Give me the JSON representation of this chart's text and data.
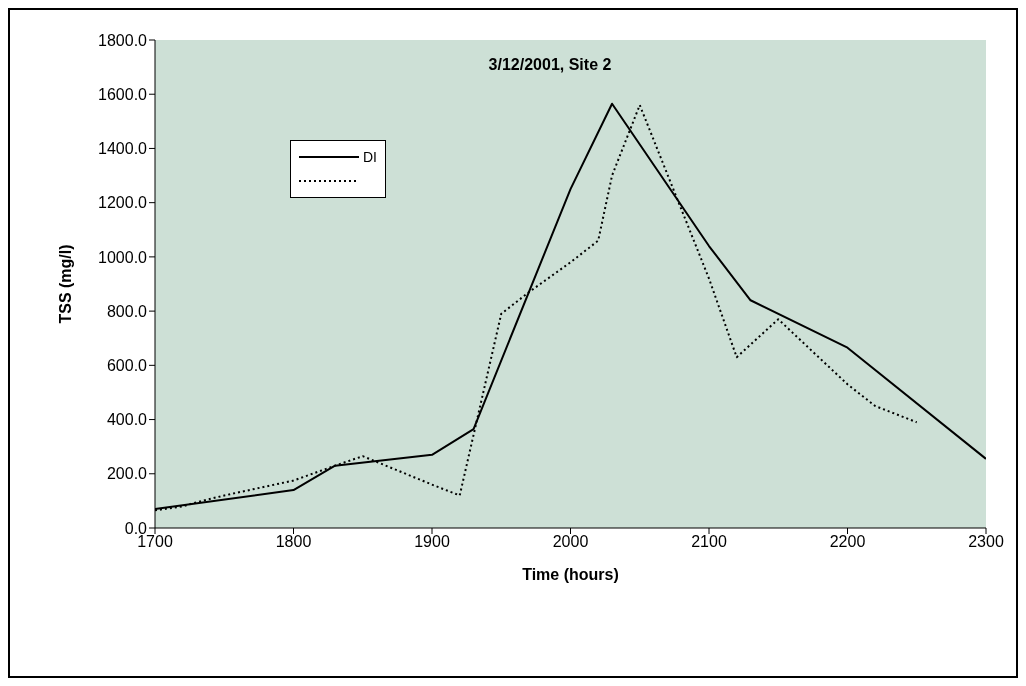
{
  "chart_data": {
    "type": "line",
    "title": "3/12/2001, Site 2",
    "xlabel": "Time (hours)",
    "ylabel": "TSS (mg/l)",
    "xlim": [
      1700,
      2300
    ],
    "xticks": [
      1700,
      1800,
      1900,
      2000,
      2100,
      2200,
      2300
    ],
    "ylim": [
      0,
      1800
    ],
    "yticks": [
      {
        "value": 0,
        "label": "0.0"
      },
      {
        "value": 200,
        "label": "200.0"
      },
      {
        "value": 400,
        "label": "400.0"
      },
      {
        "value": 600,
        "label": "600.0"
      },
      {
        "value": 800,
        "label": "800.0"
      },
      {
        "value": 1000,
        "label": "1000.0"
      },
      {
        "value": 1200,
        "label": "1200.0"
      },
      {
        "value": 1400,
        "label": "1400.0"
      },
      {
        "value": 1600,
        "label": "1600.0"
      },
      {
        "value": 1800,
        "label": "1800.0"
      }
    ],
    "grid": false,
    "legend": "top left",
    "marker": "none",
    "series": [
      {
        "name": "DI",
        "color": "#000000",
        "line_style": "solid",
        "x": [
          1700,
          1800,
          1830,
          1900,
          1930,
          2000,
          2030,
          2100,
          2130,
          2200,
          2300
        ],
        "values": [
          70,
          140,
          230,
          270,
          365,
          1250,
          1565,
          1040,
          840,
          665,
          255
        ]
      },
      {
        "color": "#000000",
        "line_style": "dotted",
        "x": [
          1700,
          1720,
          1730,
          1750,
          1800,
          1830,
          1850,
          1900,
          1920,
          1950,
          1970,
          2000,
          2020,
          2030,
          2050,
          2100,
          2120,
          2150,
          2200,
          2220,
          2250
        ],
        "values": [
          65,
          80,
          95,
          120,
          175,
          230,
          265,
          160,
          120,
          790,
          870,
          980,
          1060,
          1300,
          1560,
          920,
          630,
          770,
          530,
          450,
          390
        ]
      }
    ]
  }
}
